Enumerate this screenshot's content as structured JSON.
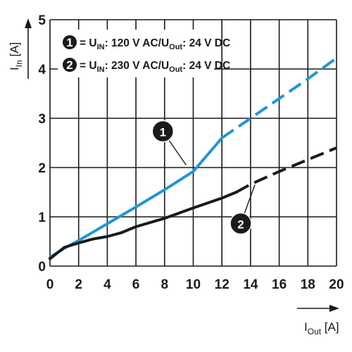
{
  "chart_data": {
    "type": "line",
    "xlabel": {
      "main": "I",
      "sub": "Out",
      "unit": " [A]"
    },
    "ylabel": {
      "main": "I",
      "sub": "In",
      "unit": " [A]"
    },
    "xlim": [
      0,
      20
    ],
    "ylim": [
      0,
      5
    ],
    "xticks": [
      "0",
      "2",
      "4",
      "6",
      "8",
      "10",
      "12",
      "14",
      "16",
      "18",
      "20"
    ],
    "yticks": [
      "0",
      "1",
      "2",
      "3",
      "4",
      "5"
    ],
    "grid": true,
    "legend_position": "top-left",
    "series": [
      {
        "id": "1",
        "color": "#2196d3",
        "legend": {
          "a": "= U",
          "a_sub": "IN",
          "b": ": 120 V AC/U",
          "b_sub": "Out",
          "c": ": 24 V DC"
        },
        "solid": [
          [
            0,
            0.18
          ],
          [
            1,
            0.36
          ],
          [
            2,
            0.52
          ],
          [
            4,
            0.86
          ],
          [
            6,
            1.2
          ],
          [
            8,
            1.55
          ],
          [
            10,
            1.92
          ],
          [
            12,
            2.6
          ]
        ],
        "dashed": [
          [
            12,
            2.6
          ],
          [
            14,
            3.0
          ],
          [
            16,
            3.4
          ],
          [
            18,
            3.8
          ],
          [
            20,
            4.22
          ]
        ],
        "callout": {
          "label": "1",
          "point": [
            9.5,
            2.05
          ]
        }
      },
      {
        "id": "2",
        "color": "#1a1a1a",
        "legend": {
          "a": "= U",
          "a_sub": "IN",
          "b": ": 230 V AC/U",
          "b_sub": "Out",
          "c": ": 24 V DC"
        },
        "solid": [
          [
            0,
            0.15
          ],
          [
            1,
            0.38
          ],
          [
            2,
            0.47
          ],
          [
            3,
            0.55
          ],
          [
            4,
            0.6
          ],
          [
            5,
            0.68
          ],
          [
            6,
            0.8
          ],
          [
            8,
            0.97
          ],
          [
            10,
            1.18
          ],
          [
            12,
            1.38
          ],
          [
            13,
            1.5
          ]
        ],
        "dashed": [
          [
            13,
            1.5
          ],
          [
            14,
            1.66
          ],
          [
            16,
            1.92
          ],
          [
            18,
            2.16
          ],
          [
            20,
            2.4
          ]
        ],
        "callout": {
          "label": "2",
          "point": [
            14.3,
            1.65
          ]
        }
      }
    ]
  }
}
